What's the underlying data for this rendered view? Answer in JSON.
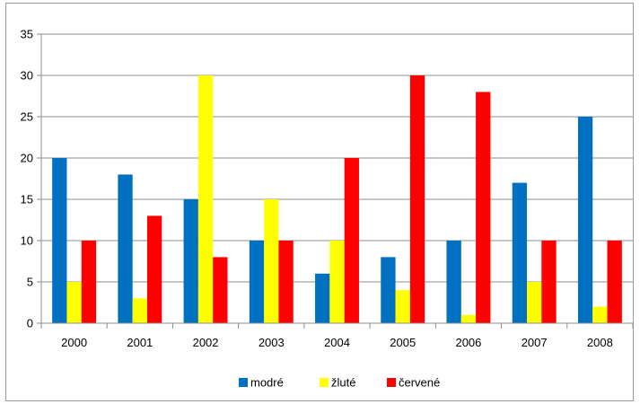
{
  "chart_data": {
    "type": "bar",
    "categories": [
      "2000",
      "2001",
      "2002",
      "2003",
      "2004",
      "2005",
      "2006",
      "2007",
      "2008"
    ],
    "series": [
      {
        "name": "modré",
        "color": "#0070C0",
        "values": [
          20,
          18,
          15,
          10,
          6,
          8,
          10,
          17,
          25
        ]
      },
      {
        "name": "žluté",
        "color": "#FFFF00",
        "values": [
          5,
          3,
          30,
          15,
          10,
          4,
          1,
          5,
          2
        ]
      },
      {
        "name": "červené",
        "color": "#FF0000",
        "values": [
          10,
          13,
          8,
          10,
          20,
          30,
          28,
          10,
          10
        ]
      }
    ],
    "ylim": [
      0,
      35
    ],
    "yticks": [
      "0",
      "5",
      "10",
      "15",
      "20",
      "25",
      "30",
      "35"
    ],
    "grid": true,
    "legend": "bottom",
    "title": "",
    "xlabel": "",
    "ylabel": ""
  }
}
